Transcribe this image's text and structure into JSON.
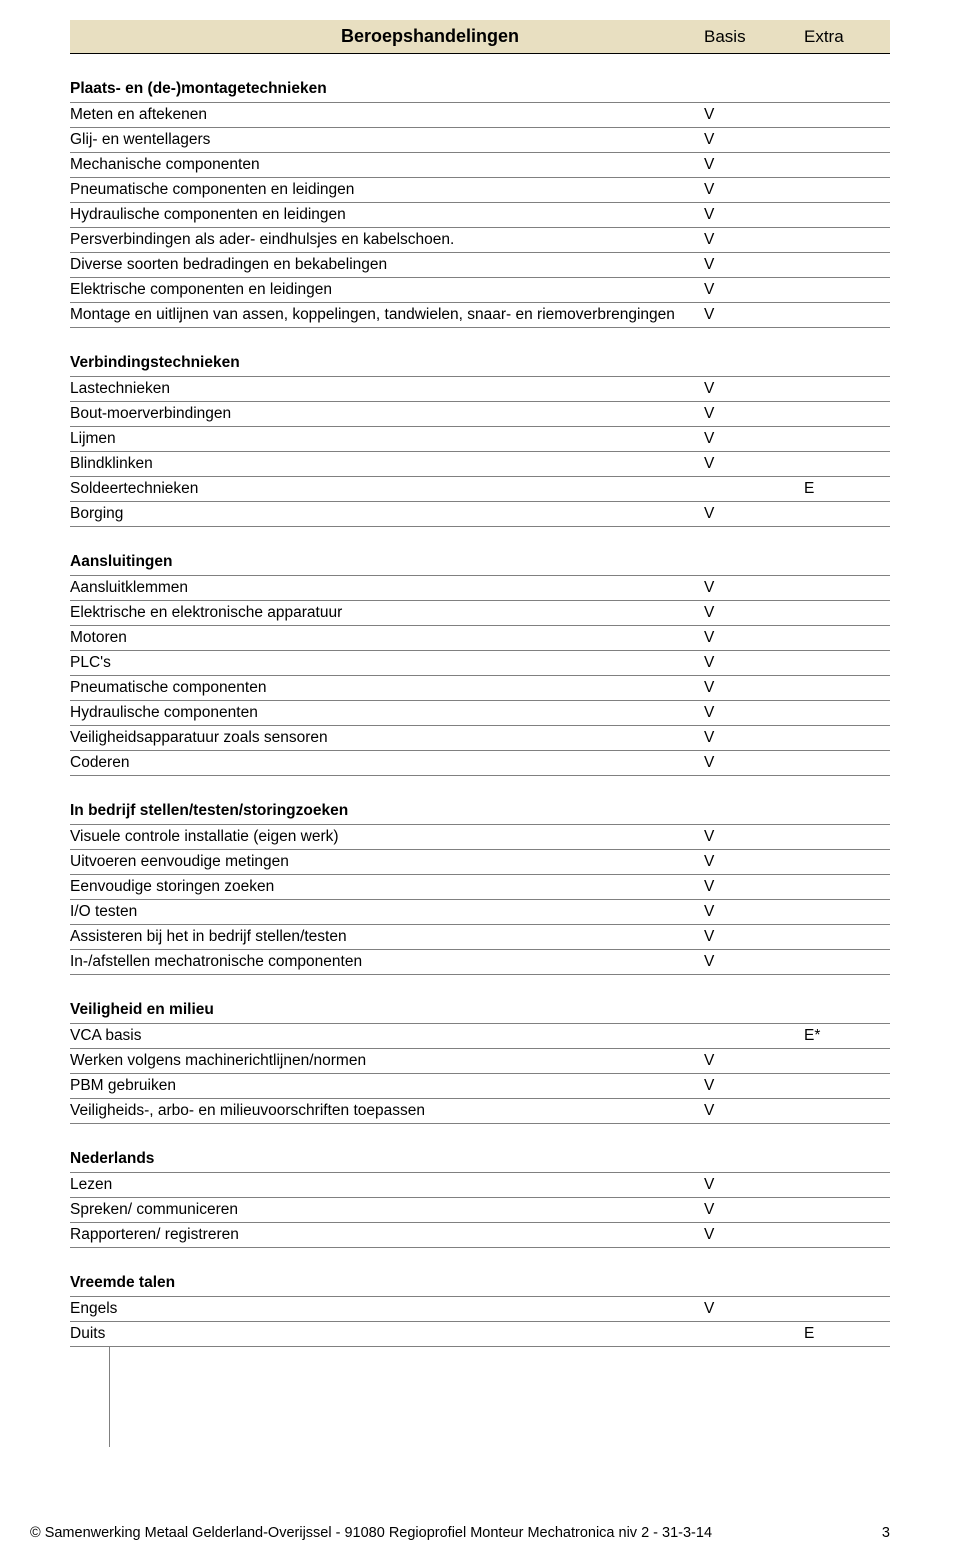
{
  "header": {
    "title": "Beroepshandelingen",
    "col_basis": "Basis",
    "col_extra": "Extra"
  },
  "mark_basis": "V",
  "mark_extra": "E",
  "mark_extra_star": "E*",
  "sections": [
    {
      "title": "Plaats- en (de-)montagetechnieken",
      "rows": [
        {
          "label": "Meten en aftekenen",
          "basis": "V",
          "extra": ""
        },
        {
          "label": "Glij- en wentellagers",
          "basis": "V",
          "extra": ""
        },
        {
          "label": "Mechanische componenten",
          "basis": "V",
          "extra": ""
        },
        {
          "label": "Pneumatische componenten en leidingen",
          "basis": "V",
          "extra": ""
        },
        {
          "label": "Hydraulische componenten en leidingen",
          "basis": "V",
          "extra": ""
        },
        {
          "label": "Persverbindingen als ader- eindhulsjes en kabelschoen.",
          "basis": "V",
          "extra": ""
        },
        {
          "label": "Diverse soorten bedradingen en bekabelingen",
          "basis": "V",
          "extra": ""
        },
        {
          "label": "Elektrische componenten en leidingen",
          "basis": "V",
          "extra": ""
        },
        {
          "label": "Montage en uitlijnen van assen, koppelingen, tandwielen, snaar- en riemoverbrengingen",
          "basis": "V",
          "extra": ""
        }
      ]
    },
    {
      "title": "Verbindingstechnieken",
      "rows": [
        {
          "label": "Lastechnieken",
          "basis": "V",
          "extra": ""
        },
        {
          "label": "Bout-moerverbindingen",
          "basis": "V",
          "extra": ""
        },
        {
          "label": "Lijmen",
          "basis": "V",
          "extra": ""
        },
        {
          "label": "Blindklinken",
          "basis": "V",
          "extra": ""
        },
        {
          "label": "Soldeertechnieken",
          "basis": "",
          "extra": "E"
        },
        {
          "label": "Borging",
          "basis": "V",
          "extra": ""
        }
      ]
    },
    {
      "title": "Aansluitingen",
      "rows": [
        {
          "label": "Aansluitklemmen",
          "basis": "V",
          "extra": ""
        },
        {
          "label": "Elektrische en elektronische apparatuur",
          "basis": "V",
          "extra": ""
        },
        {
          "label": "Motoren",
          "basis": "V",
          "extra": ""
        },
        {
          "label": "PLC's",
          "basis": "V",
          "extra": ""
        },
        {
          "label": "Pneumatische componenten",
          "basis": "V",
          "extra": ""
        },
        {
          "label": "Hydraulische componenten",
          "basis": "V",
          "extra": ""
        },
        {
          "label": "Veiligheidsapparatuur zoals sensoren",
          "basis": "V",
          "extra": ""
        },
        {
          "label": "Coderen",
          "basis": "V",
          "extra": ""
        }
      ]
    },
    {
      "title": "In bedrijf stellen/testen/storingzoeken",
      "rows": [
        {
          "label": "Visuele controle installatie (eigen werk)",
          "basis": "V",
          "extra": ""
        },
        {
          "label": "Uitvoeren  eenvoudige metingen",
          "basis": "V",
          "extra": ""
        },
        {
          "label": "Eenvoudige storingen zoeken",
          "basis": "V",
          "extra": ""
        },
        {
          "label": "I/O testen",
          "basis": "V",
          "extra": ""
        },
        {
          "label": "Assisteren bij het in bedrijf stellen/testen",
          "basis": "V",
          "extra": ""
        },
        {
          "label": "In-/afstellen mechatronische componenten",
          "basis": "V",
          "extra": ""
        }
      ]
    },
    {
      "title": "Veiligheid en milieu",
      "rows": [
        {
          "label": "VCA basis",
          "basis": "",
          "extra": "E*"
        },
        {
          "label": "Werken volgens machinerichtlijnen/normen",
          "basis": "V",
          "extra": ""
        },
        {
          "label": "PBM gebruiken",
          "basis": "V",
          "extra": ""
        },
        {
          "label": "Veiligheids-, arbo- en milieuvoorschriften toepassen",
          "basis": "V",
          "extra": ""
        }
      ]
    },
    {
      "title": "Nederlands",
      "rows": [
        {
          "label": "Lezen",
          "basis": "V",
          "extra": ""
        },
        {
          "label": "Spreken/ communiceren",
          "basis": "V",
          "extra": ""
        },
        {
          "label": "Rapporteren/ registreren",
          "basis": "V",
          "extra": ""
        }
      ]
    },
    {
      "title": "Vreemde talen",
      "rows": [
        {
          "label": "Engels",
          "basis": "V",
          "extra": ""
        },
        {
          "label": "Duits",
          "basis": "",
          "extra": "E"
        }
      ]
    }
  ],
  "footer": {
    "copyright_symbol": "©",
    "text": "Samenwerking Metaal Gelderland-Overijssel  -  91080  Regioprofiel Monteur Mechatronica niv 2  -  31-3-14",
    "page_number": "3"
  },
  "colors": {
    "header_bg": "#e8dfc1",
    "border": "#808080",
    "text": "#000000",
    "page_bg": "#ffffff"
  }
}
